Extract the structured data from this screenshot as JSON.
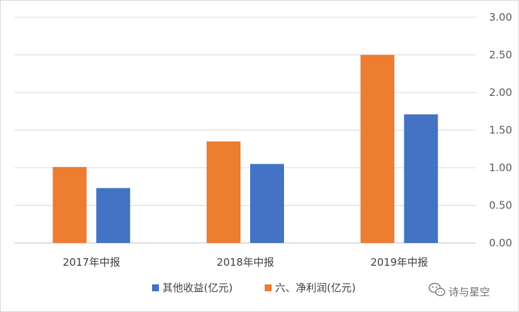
{
  "chart_data": {
    "type": "bar",
    "categories": [
      "2017年中报",
      "2018年中报",
      "2019年中报"
    ],
    "series": [
      {
        "name": "六、净利润(亿元)",
        "values": [
          1.01,
          1.35,
          2.5
        ],
        "color": "#ED7D31"
      },
      {
        "name": "其他收益(亿元)",
        "values": [
          0.73,
          1.05,
          1.71
        ],
        "color": "#4472C4"
      }
    ],
    "ylim": [
      0,
      3.0
    ],
    "yticks": [
      "0.00",
      "0.50",
      "1.00",
      "1.50",
      "2.00",
      "2.50",
      "3.00"
    ],
    "y_axis_side": "right",
    "grid": true,
    "legend": {
      "placement": "bottom",
      "entries": [
        "其他收益(亿元)",
        "六、净利润(亿元)"
      ]
    }
  },
  "watermark": {
    "icon": "wechat-icon",
    "text": "诗与星空"
  }
}
